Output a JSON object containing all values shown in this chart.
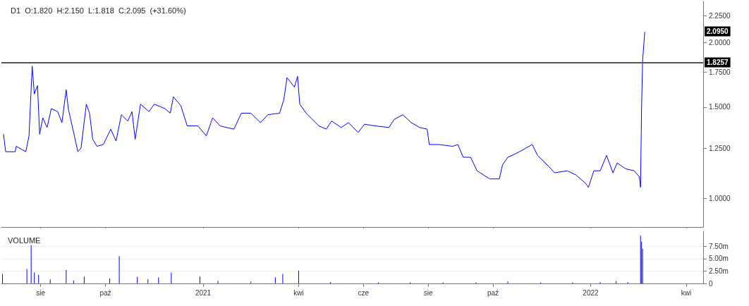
{
  "chart_data": [
    {
      "type": "line",
      "title": "D1  O:1.820  H:2.150  L:1.818  C:2.095  (+31.60%)",
      "log": "y",
      "grid": false,
      "marker": "none",
      "line_style": "solid",
      "tick_labels": "y",
      "xlim": [
        "2020-06-25",
        "2022-04-17"
      ],
      "xticks": [
        {
          "value": "2020-08-01",
          "label": null
        },
        {
          "value": "2020-10-01",
          "label": null
        },
        {
          "value": "2021-01-01",
          "label": null
        },
        {
          "value": "2021-04-01",
          "label": null
        },
        {
          "value": "2021-06-01",
          "label": null
        },
        {
          "value": "2021-08-01",
          "label": null
        },
        {
          "value": "2021-10-01",
          "label": null
        },
        {
          "value": "2022-01-01",
          "label": null
        },
        {
          "value": "2022-04-01",
          "label": null
        }
      ],
      "ylim": [
        0.88,
        2.4
      ],
      "yticks": [
        {
          "value": 1,
          "label": "1.0000"
        },
        {
          "value": 1.25,
          "label": "1.2500"
        },
        {
          "value": 1.5,
          "label": "1.5000"
        },
        {
          "value": 1.75,
          "label": "1.7500"
        },
        {
          "value": 2,
          "label": "2.0000"
        },
        {
          "value": 2.25,
          "label": "2.2500"
        }
      ],
      "ref_lines": [
        {
          "axis": "y",
          "value": 1.8257,
          "label": "1.8257",
          "color": "#555555"
        }
      ],
      "annotations": [
        {
          "text": "2.0950",
          "y": 2.095
        }
      ],
      "series": [
        {
          "color": "#0000ff",
          "x": [
            "2020-06-27",
            "2020-06-29",
            "2020-07-08",
            "2020-07-09",
            "2020-07-18",
            "2020-07-21",
            "2020-07-24",
            "2020-07-26",
            "2020-07-29",
            "2020-07-31",
            "2020-08-03",
            "2020-08-07",
            "2020-08-11",
            "2020-08-17",
            "2020-08-21",
            "2020-08-25",
            "2020-08-27",
            "2020-09-01",
            "2020-09-05",
            "2020-09-08",
            "2020-09-13",
            "2020-09-16",
            "2020-09-19",
            "2020-09-23",
            "2020-09-29",
            "2020-10-06",
            "2020-10-11",
            "2020-10-16",
            "2020-10-22",
            "2020-10-26",
            "2020-10-29",
            "2020-11-03",
            "2020-11-11",
            "2020-11-16",
            "2020-11-26",
            "2020-12-01",
            "2020-12-04",
            "2020-12-11",
            "2020-12-17",
            "2020-12-27",
            "2021-01-04",
            "2021-01-10",
            "2021-01-17",
            "2021-01-23",
            "2021-01-30",
            "2021-02-06",
            "2021-02-15",
            "2021-02-24",
            "2021-03-03",
            "2021-03-14",
            "2021-03-18",
            "2021-03-21",
            "2021-03-28",
            "2021-03-31",
            "2021-04-02",
            "2021-04-08",
            "2021-04-20",
            "2021-04-27",
            "2021-05-02",
            "2021-05-11",
            "2021-05-18",
            "2021-05-27",
            "2021-06-02",
            "2021-06-12",
            "2021-06-25",
            "2021-06-30",
            "2021-07-08",
            "2021-07-16",
            "2021-07-24",
            "2021-07-31",
            "2021-08-02",
            "2021-08-11",
            "2021-08-24",
            "2021-08-29",
            "2021-09-03",
            "2021-09-10",
            "2021-09-16",
            "2021-09-19",
            "2021-09-28",
            "2021-10-07",
            "2021-10-10",
            "2021-10-15",
            "2021-10-26",
            "2021-11-07",
            "2021-11-12",
            "2021-11-23",
            "2021-11-28",
            "2021-12-10",
            "2021-12-18",
            "2021-12-27",
            "2021-12-30",
            "2022-01-04",
            "2022-01-10",
            "2022-01-16",
            "2022-01-22",
            "2022-01-26",
            "2022-02-03",
            "2022-02-11",
            "2022-02-16",
            "2022-02-17",
            "2022-02-18",
            "2022-02-19",
            "2022-02-21"
          ],
          "values": [
            1.33,
            1.23,
            1.23,
            1.26,
            1.23,
            1.32,
            1.8,
            1.59,
            1.65,
            1.33,
            1.43,
            1.37,
            1.49,
            1.47,
            1.4,
            1.62,
            1.49,
            1.34,
            1.23,
            1.25,
            1.52,
            1.46,
            1.3,
            1.26,
            1.27,
            1.36,
            1.29,
            1.45,
            1.41,
            1.47,
            1.3,
            1.52,
            1.47,
            1.52,
            1.49,
            1.46,
            1.57,
            1.51,
            1.38,
            1.38,
            1.32,
            1.43,
            1.38,
            1.37,
            1.36,
            1.46,
            1.46,
            1.4,
            1.45,
            1.46,
            1.55,
            1.71,
            1.64,
            1.72,
            1.52,
            1.46,
            1.38,
            1.36,
            1.41,
            1.37,
            1.4,
            1.34,
            1.39,
            1.38,
            1.37,
            1.42,
            1.45,
            1.4,
            1.37,
            1.36,
            1.27,
            1.27,
            1.26,
            1.27,
            1.2,
            1.2,
            1.13,
            1.12,
            1.09,
            1.09,
            1.16,
            1.2,
            1.23,
            1.27,
            1.21,
            1.15,
            1.12,
            1.13,
            1.11,
            1.07,
            1.05,
            1.13,
            1.13,
            1.21,
            1.12,
            1.17,
            1.14,
            1.13,
            1.1,
            1.05,
            1.5,
            1.85,
            2.095
          ]
        }
      ]
    },
    {
      "type": "bar",
      "title": "VOLUME",
      "grid": "y",
      "xlim": [
        "2020-06-25",
        "2022-04-17"
      ],
      "xticks": [
        {
          "value": "2020-08-01",
          "label": "sie"
        },
        {
          "value": "2020-10-01",
          "label": "paź"
        },
        {
          "value": "2021-01-01",
          "label": "2021"
        },
        {
          "value": "2021-04-01",
          "label": "kwi"
        },
        {
          "value": "2021-06-01",
          "label": "cze"
        },
        {
          "value": "2021-08-01",
          "label": "sie"
        },
        {
          "value": "2021-10-01",
          "label": "paź"
        },
        {
          "value": "2022-01-01",
          "label": "2022"
        },
        {
          "value": "2022-04-01",
          "label": "kwi"
        }
      ],
      "ylim": [
        0,
        10.5
      ],
      "yticks": [
        0,
        {
          "value": 2.5,
          "label": "2.50m"
        },
        {
          "value": 5,
          "label": "5.00m"
        },
        {
          "value": 7.5,
          "label": "7.50m"
        }
      ],
      "series": [
        {
          "color": "#0000ff",
          "x": [
            "2020-06-26",
            "2020-07-19",
            "2020-07-23",
            "2020-07-26",
            "2020-07-30",
            "2020-08-10",
            "2020-08-25",
            "2020-09-01",
            "2020-09-11",
            "2020-10-05",
            "2020-10-14",
            "2020-10-31",
            "2020-11-10",
            "2020-11-20",
            "2020-12-02",
            "2020-12-29",
            "2021-01-15",
            "2021-02-15",
            "2021-03-10",
            "2021-03-17",
            "2021-04-01",
            "2021-05-01",
            "2021-06-15",
            "2021-07-15",
            "2021-08-15",
            "2021-09-15",
            "2021-10-15",
            "2021-11-15",
            "2021-12-15",
            "2022-01-10",
            "2022-01-25",
            "2022-02-05",
            "2022-02-17",
            "2022-02-18",
            "2022-02-19"
          ],
          "values": [
            1.9,
            2.9,
            7.7,
            2.2,
            1.7,
            0.8,
            2.7,
            0.6,
            1.4,
            1.0,
            5.5,
            1.3,
            0.8,
            1.2,
            2.2,
            1.4,
            0.5,
            0.4,
            1.2,
            1.9,
            2.6,
            0.3,
            0.2,
            0.2,
            0.2,
            0.2,
            0.4,
            0.2,
            0.2,
            0.3,
            0.5,
            0.3,
            9.6,
            8.4,
            7.0
          ]
        }
      ]
    }
  ]
}
